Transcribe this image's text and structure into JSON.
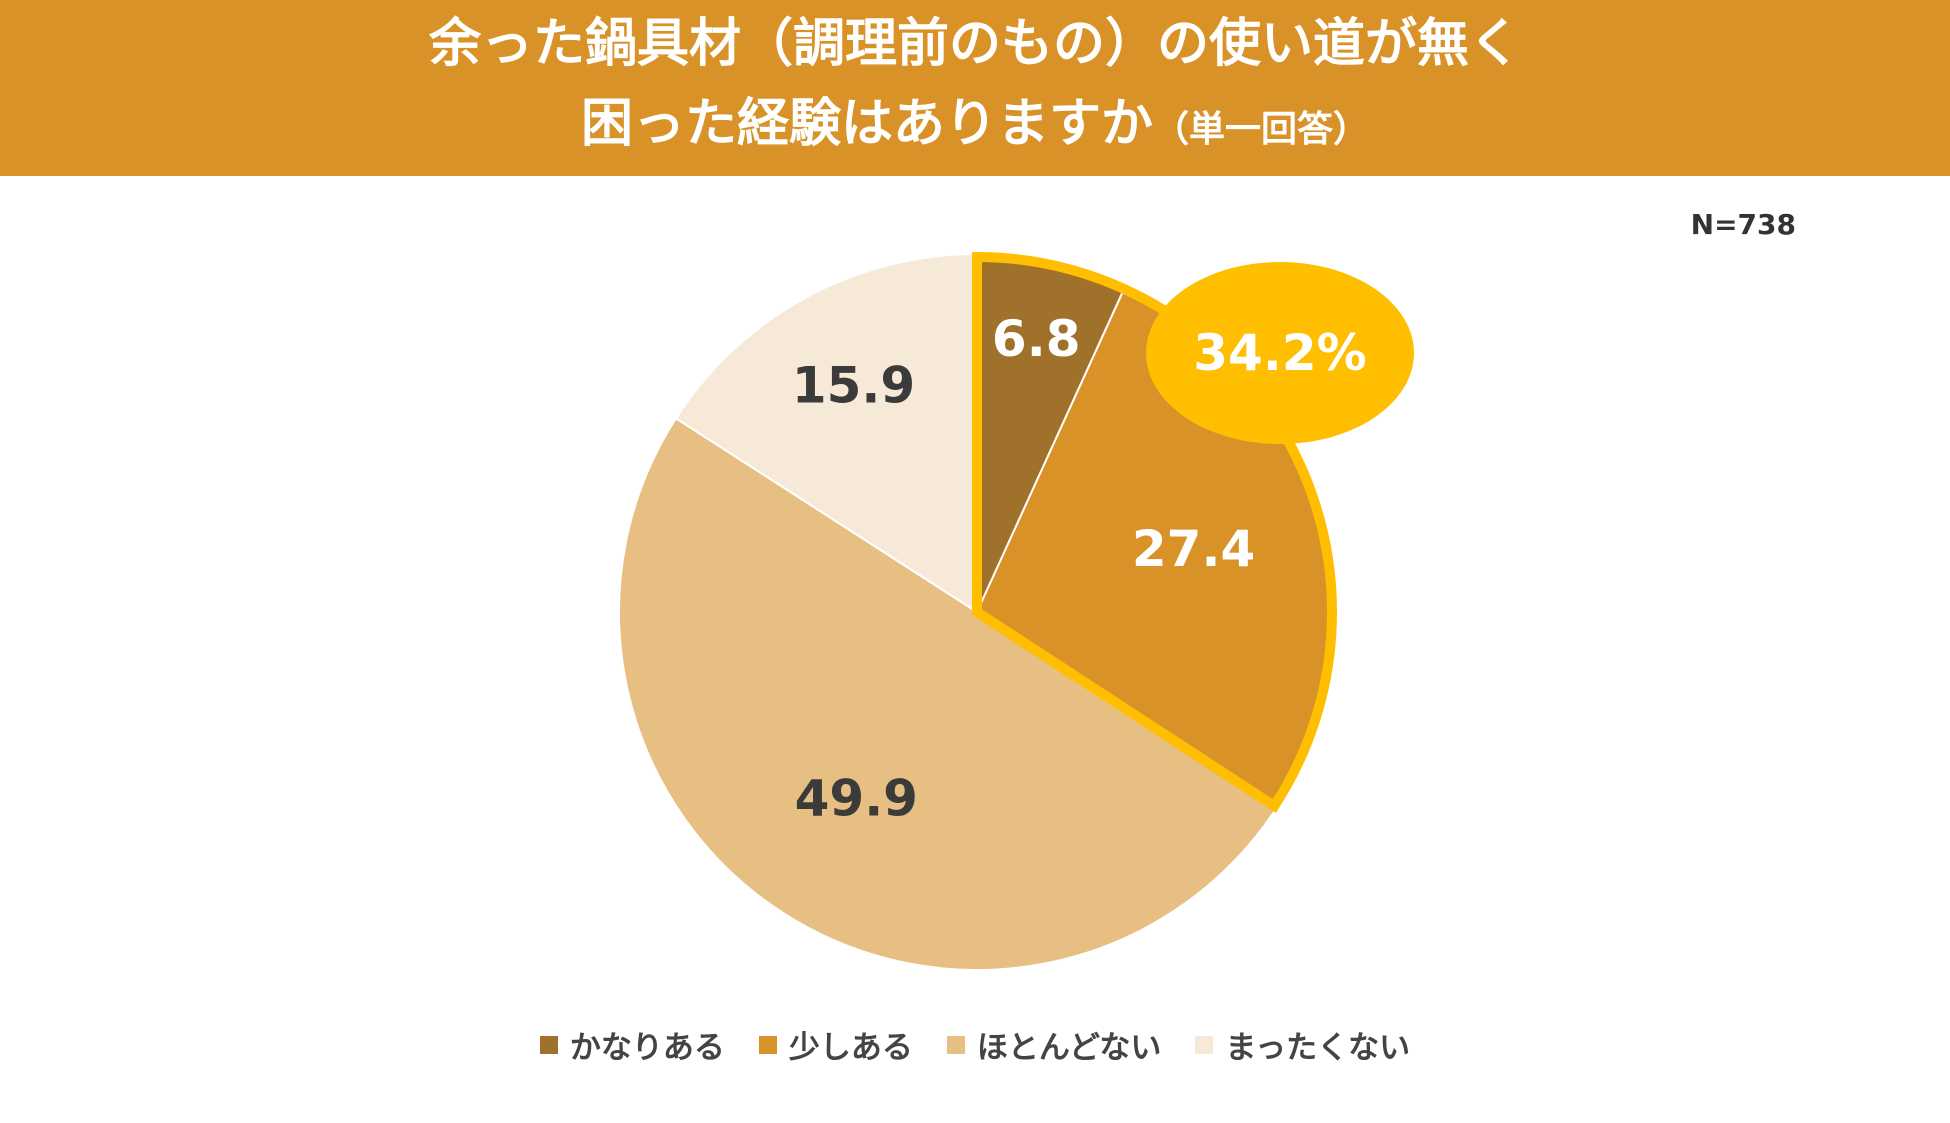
{
  "chart_data": {
    "type": "pie",
    "title_line1": "余った鍋具材（調理前のもの）の使い道が無く",
    "title_line2_main": "困った経験はありますか",
    "title_line2_sub": "（単一回答）",
    "sample_size": "N=738",
    "slices": [
      {
        "name": "かなりある",
        "value": 6.8,
        "label": "6.8",
        "color": "#A0712A",
        "label_color": "#ffffff"
      },
      {
        "name": "少しある",
        "value": 27.4,
        "label": "27.4",
        "color": "#D89228",
        "label_color": "#ffffff"
      },
      {
        "name": "ほとんどない",
        "value": 49.9,
        "label": "49.9",
        "color": "#E8BF82",
        "label_color": "#3b3b3b"
      },
      {
        "name": "まったくない",
        "value": 15.9,
        "label": "15.9",
        "color": "#F7E9D7",
        "label_color": "#3b3b3b"
      }
    ],
    "callout": {
      "text": "34.2%",
      "color": "#FFBF00",
      "text_color": "#ffffff",
      "highlight_color": "#FFBF00"
    },
    "legend_placement": "bottom"
  }
}
